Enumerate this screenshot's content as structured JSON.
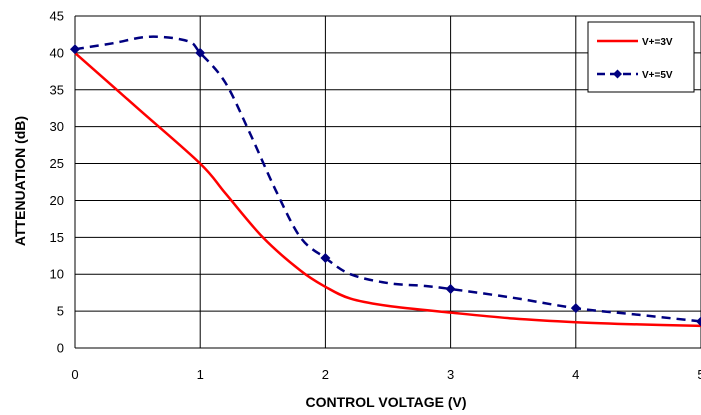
{
  "chart_data": {
    "type": "line",
    "xlabel": "CONTROL VOLTAGE (V)",
    "ylabel": "ATTENUATION (dB)",
    "xlim": [
      0,
      5
    ],
    "ylim": [
      0,
      45
    ],
    "x_ticks": [
      "0",
      "1",
      "2",
      "3",
      "4",
      "5"
    ],
    "y_ticks": [
      "0",
      "5",
      "10",
      "15",
      "20",
      "25",
      "30",
      "35",
      "40",
      "45"
    ],
    "grid": true,
    "legend_position": "top-right",
    "series": [
      {
        "name": "V+=3V",
        "color": "#ff0000",
        "style": "solid",
        "marker": "none",
        "x": [
          0,
          0.5,
          1.0,
          1.2,
          1.5,
          1.8,
          2.0,
          2.2,
          2.5,
          3.0,
          3.5,
          4.0,
          4.5,
          5.0
        ],
        "values": [
          40,
          32.5,
          25,
          21,
          15,
          10.5,
          8.3,
          6.7,
          5.7,
          4.8,
          4.0,
          3.5,
          3.2,
          3.0
        ]
      },
      {
        "name": "V+=5V",
        "color": "#000080",
        "style": "dashed",
        "marker": "diamond",
        "x": [
          0,
          0.3,
          0.6,
          0.9,
          1.0,
          1.2,
          1.4,
          1.6,
          1.8,
          2.0,
          2.2,
          2.5,
          2.8,
          3.0,
          3.5,
          4.0,
          4.5,
          5.0
        ],
        "values": [
          40.5,
          41.3,
          42.2,
          41.6,
          40.0,
          36.0,
          29.0,
          21.5,
          15.0,
          12.2,
          10.0,
          8.8,
          8.4,
          8.0,
          6.8,
          5.4,
          4.5,
          3.6
        ],
        "marker_x": [
          0,
          1,
          2,
          3,
          4,
          5
        ],
        "marker_values": [
          40.5,
          40.0,
          12.2,
          8.0,
          5.4,
          3.6
        ]
      }
    ]
  }
}
